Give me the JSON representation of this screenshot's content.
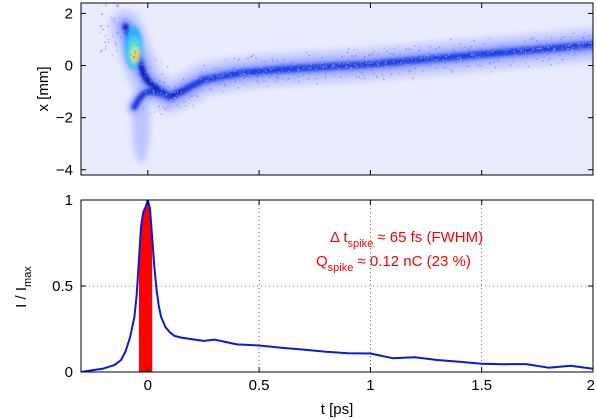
{
  "chart_data": [
    {
      "type": "heatmap",
      "ylabel": "x [mm]",
      "xlim": [
        -0.3,
        2.0
      ],
      "ylim": [
        -4.2,
        2.4
      ],
      "yticks": [
        "2",
        "0",
        "−2",
        "−4"
      ],
      "ytick_values": [
        2,
        0,
        -2,
        -4
      ],
      "grid": false,
      "colormap": "jet",
      "ridge": {
        "t": [
          -0.1,
          -0.08,
          -0.06,
          -0.04,
          -0.02,
          0.0,
          0.05,
          0.1,
          0.15,
          0.25,
          0.4,
          0.6,
          0.8,
          1.0,
          1.2,
          1.4,
          1.6,
          1.8,
          2.0
        ],
        "x": [
          1.5,
          1.1,
          0.6,
          0.2,
          -0.3,
          -0.6,
          -0.95,
          -1.2,
          -1.0,
          -0.55,
          -0.3,
          -0.15,
          -0.05,
          0.05,
          0.2,
          0.35,
          0.5,
          0.65,
          0.8
        ]
      },
      "lower_branch": {
        "t": [
          -0.06,
          -0.04,
          -0.02,
          0.0,
          0.05,
          0.1
        ],
        "x": [
          -1.6,
          -1.3,
          -1.1,
          -1.0,
          -1.05,
          -1.2
        ]
      }
    },
    {
      "type": "line",
      "xlabel": "t [ps]",
      "ylabel_main": "I / I",
      "ylabel_sub": "max",
      "xlim": [
        -0.3,
        2.0
      ],
      "ylim": [
        0,
        1.0
      ],
      "xticks": [
        "0",
        "0.5",
        "1",
        "1.5",
        "2"
      ],
      "xtick_values": [
        0,
        0.5,
        1,
        1.5,
        2
      ],
      "yticks": [
        "0",
        "0.5",
        "1"
      ],
      "ytick_values": [
        0,
        0.5,
        1
      ],
      "grid": true,
      "series": [
        {
          "color": "#0a1bd6",
          "x": [
            -0.3,
            -0.25,
            -0.2,
            -0.15,
            -0.12,
            -0.1,
            -0.08,
            -0.06,
            -0.05,
            -0.04,
            -0.03,
            -0.02,
            -0.01,
            0.0,
            0.01,
            0.02,
            0.03,
            0.04,
            0.05,
            0.06,
            0.08,
            0.1,
            0.12,
            0.15,
            0.2,
            0.25,
            0.3,
            0.4,
            0.5,
            0.6,
            0.7,
            0.8,
            0.9,
            1.0,
            1.1,
            1.2,
            1.3,
            1.4,
            1.5,
            1.6,
            1.7,
            1.8,
            1.9,
            2.0
          ],
          "y": [
            0.0,
            0.01,
            0.02,
            0.04,
            0.07,
            0.12,
            0.2,
            0.32,
            0.45,
            0.65,
            0.85,
            0.93,
            0.96,
            1.0,
            0.95,
            0.78,
            0.6,
            0.47,
            0.38,
            0.32,
            0.26,
            0.23,
            0.21,
            0.2,
            0.19,
            0.18,
            0.18,
            0.17,
            0.15,
            0.14,
            0.13,
            0.12,
            0.11,
            0.1,
            0.09,
            0.08,
            0.07,
            0.06,
            0.05,
            0.045,
            0.04,
            0.035,
            0.03,
            0.02
          ]
        }
      ],
      "filled_region": {
        "color": "#ff0000",
        "x_from": -0.04,
        "x_to": 0.02
      },
      "annotations": {
        "line1_a": "Δ t",
        "line1_sub": "spike",
        "line1_b": " ≈ 65 fs (FWHM)",
        "line2_a": "Q",
        "line2_sub": "spike",
        "line2_b": " ≈ 0.12 nC (23 %)"
      }
    }
  ]
}
